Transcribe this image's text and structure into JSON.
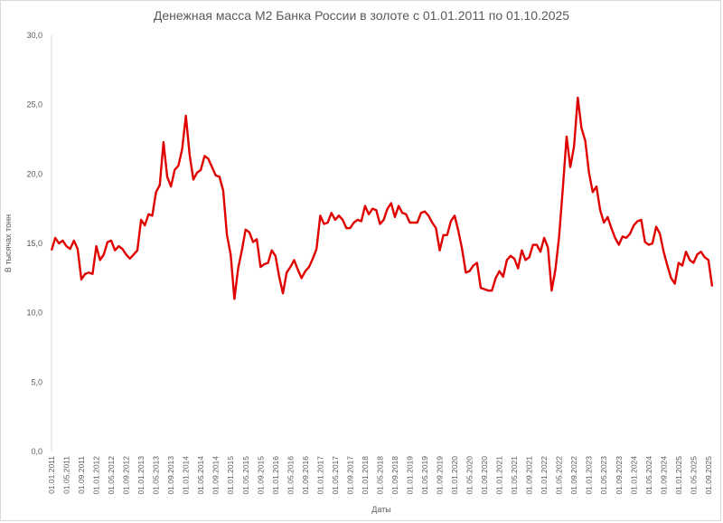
{
  "chart_data": {
    "type": "line",
    "title": "Денежная масса М2 Банка России в золоте с 01.01.2011 по 01.10.2025",
    "xlabel": "Даты",
    "ylabel": "В тысячах тонн",
    "ylim": [
      0,
      30
    ],
    "yticks": [
      "0,0",
      "5,0",
      "10,0",
      "15,0",
      "20,0",
      "25,0",
      "30,0"
    ],
    "grid": false,
    "legend": "none",
    "x_tick_labels": [
      "01.01.2011",
      "01.05.2011",
      "01.09.2011",
      "01.01.2012",
      "01.05.2012",
      "01.09.2012",
      "01.01.2013",
      "01.05.2013",
      "01.09.2013",
      "01.01.2014",
      "01.05.2014",
      "01.09.2014",
      "01.01.2015",
      "01.05.2015",
      "01.09.2015",
      "01.01.2016",
      "01.05.2016",
      "01.09.2016",
      "01.01.2017",
      "01.05.2017",
      "01.09.2017",
      "01.01.2018",
      "01.05.2018",
      "01.09.2018",
      "01.01.2019",
      "01.05.2019",
      "01.09.2019",
      "01.01.2020",
      "01.05.2020",
      "01.09.2020",
      "01.01.2021",
      "01.05.2021",
      "01.09.2021",
      "01.01.2022",
      "01.05.2022",
      "01.09.2022",
      "01.01.2023",
      "01.05.2023",
      "01.09.2023",
      "01.01.2024",
      "01.05.2024",
      "01.09.2024",
      "01.01.2025",
      "01.05.2025",
      "01.09.2025"
    ],
    "line_color": "#e00000",
    "series": [
      {
        "values": [
          14.5,
          15.4,
          15.0,
          15.2,
          14.8,
          14.6,
          15.2,
          14.6,
          12.4,
          12.8,
          12.9,
          12.8,
          14.8,
          13.8,
          14.2,
          15.1,
          15.2,
          14.5,
          14.8,
          14.6,
          14.2,
          13.9,
          14.2,
          14.5,
          16.7,
          16.3,
          17.1,
          17.0,
          18.7,
          19.2,
          22.3,
          19.8,
          19.1,
          20.3,
          20.6,
          21.8,
          24.2,
          21.4,
          19.6,
          20.1,
          20.3,
          21.3,
          21.1,
          20.5,
          19.9,
          19.8,
          18.8,
          15.6,
          14.2,
          11.0,
          13.2,
          14.5,
          16.0,
          15.8,
          15.1,
          15.3,
          13.3,
          13.5,
          13.6,
          14.5,
          14.1,
          12.6,
          11.4,
          12.9,
          13.3,
          13.8,
          13.1,
          12.5,
          13.0,
          13.3,
          13.9,
          14.6,
          17.0,
          16.4,
          16.5,
          17.2,
          16.7,
          17.0,
          16.7,
          16.1,
          16.1,
          16.5,
          16.7,
          16.6,
          17.7,
          17.1,
          17.5,
          17.4,
          16.4,
          16.7,
          17.5,
          17.9,
          16.9,
          17.7,
          17.2,
          17.1,
          16.5,
          16.5,
          16.5,
          17.2,
          17.3,
          17.0,
          16.5,
          16.1,
          14.5,
          15.6,
          15.6,
          16.6,
          17.0,
          15.9,
          14.6,
          12.9,
          13.0,
          13.4,
          13.6,
          11.8,
          11.7,
          11.6,
          11.6,
          12.5,
          13.0,
          12.6,
          13.8,
          14.1,
          13.9,
          13.2,
          14.5,
          13.8,
          14.0,
          14.9,
          14.9,
          14.4,
          15.4,
          14.7,
          11.6,
          13.1,
          15.5,
          19.0,
          22.7,
          20.5,
          22.0,
          25.5,
          23.3,
          22.4,
          20.1,
          18.7,
          19.1,
          17.4,
          16.5,
          16.9,
          16.1,
          15.4,
          14.9,
          15.5,
          15.4,
          15.7,
          16.3,
          16.6,
          16.7,
          15.1,
          14.9,
          15.0,
          16.2,
          15.7,
          14.4,
          13.4,
          12.5,
          12.1,
          13.6,
          13.4,
          14.4,
          13.8,
          13.6,
          14.2,
          14.4,
          14.0,
          13.8,
          11.9
        ]
      }
    ]
  }
}
